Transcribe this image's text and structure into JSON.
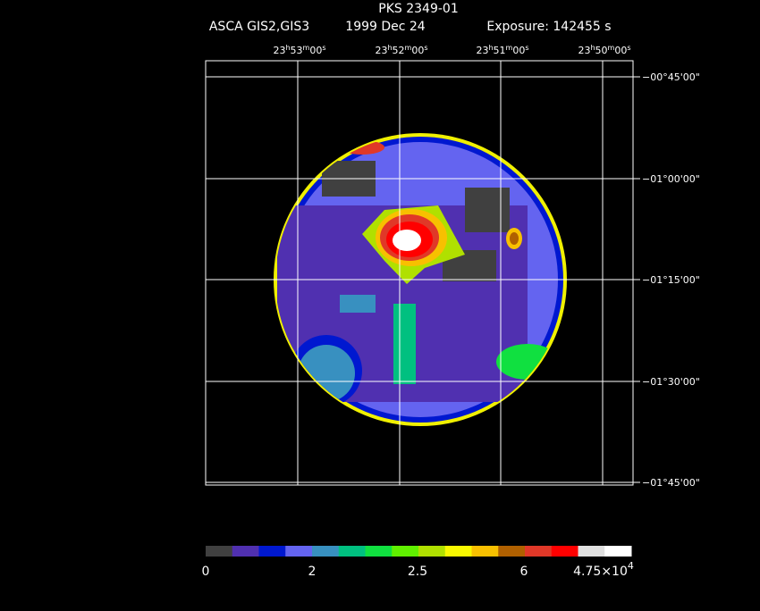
{
  "header": {
    "title": "PKS 2349-01",
    "instrument": "ASCA GIS2,GIS3",
    "date": "1999 Dec 24",
    "exposure": "Exposure: 142455 s"
  },
  "ra_labels": [
    [
      "23",
      "h",
      "53",
      "m",
      "00",
      "s"
    ],
    [
      "23",
      "h",
      "52",
      "m",
      "00",
      "s"
    ],
    [
      "23",
      "h",
      "51",
      "m",
      "00",
      "s"
    ],
    [
      "23",
      "h",
      "50",
      "m",
      "00",
      "s"
    ]
  ],
  "dec_labels": [
    "−00°45'00\"",
    "−01°00'00\"",
    "−01°15'00\"",
    "−01°30'00\"",
    "−01°45'00\""
  ],
  "colorbar": {
    "colors": [
      "#404040",
      "#5030b0",
      "#0018d0",
      "#6464f0",
      "#3890c0",
      "#00c080",
      "#10e040",
      "#60f000",
      "#b0e000",
      "#f8f800",
      "#f8c000",
      "#b06000",
      "#e03828",
      "#ff0000",
      "#e0e0e0",
      "#ffffff"
    ],
    "labels": [
      "0",
      "2",
      "2.5",
      "6"
    ],
    "max_label": "4.75×10",
    "max_exponent": "4"
  }
}
